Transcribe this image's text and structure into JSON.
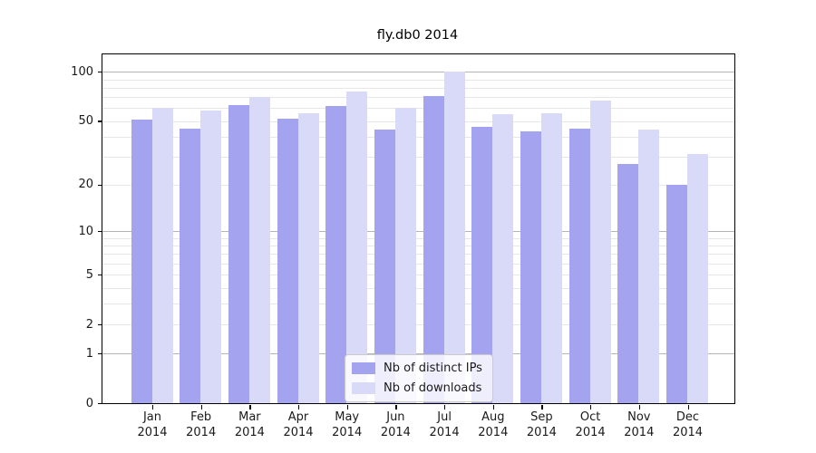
{
  "chart_data": {
    "type": "bar",
    "title": "fly.db0 2014",
    "categories": [
      "Jan",
      "Feb",
      "Mar",
      "Apr",
      "May",
      "Jun",
      "Jul",
      "Aug",
      "Sep",
      "Oct",
      "Nov",
      "Dec"
    ],
    "year_label": "2014",
    "series": [
      {
        "name": "Nb of distinct IPs",
        "color": "#a3a3f0",
        "values": [
          51,
          45,
          63,
          52,
          62,
          44,
          71,
          46,
          43,
          45,
          27,
          20
        ]
      },
      {
        "name": "Nb of downloads",
        "color": "#d9d9f8",
        "values": [
          60,
          58,
          70,
          56,
          76,
          60,
          100,
          55,
          56,
          67,
          44,
          31
        ]
      }
    ],
    "yscale": "log1p",
    "ylim": [
      0,
      128
    ],
    "ytick_values": [
      100,
      50,
      20,
      10,
      5,
      2,
      1,
      0
    ],
    "grid_major_values": [
      1,
      10,
      100
    ],
    "grid_minor_values": [
      2,
      3,
      4,
      5,
      6,
      7,
      8,
      9,
      20,
      30,
      40,
      50,
      60,
      70,
      80,
      90
    ],
    "legend_position": "lower-center",
    "colors": {
      "grid_major": "#b5b5b5",
      "grid_minor": "#e6e6e6",
      "spine": "#000000",
      "text": "#1a1a1a"
    }
  }
}
